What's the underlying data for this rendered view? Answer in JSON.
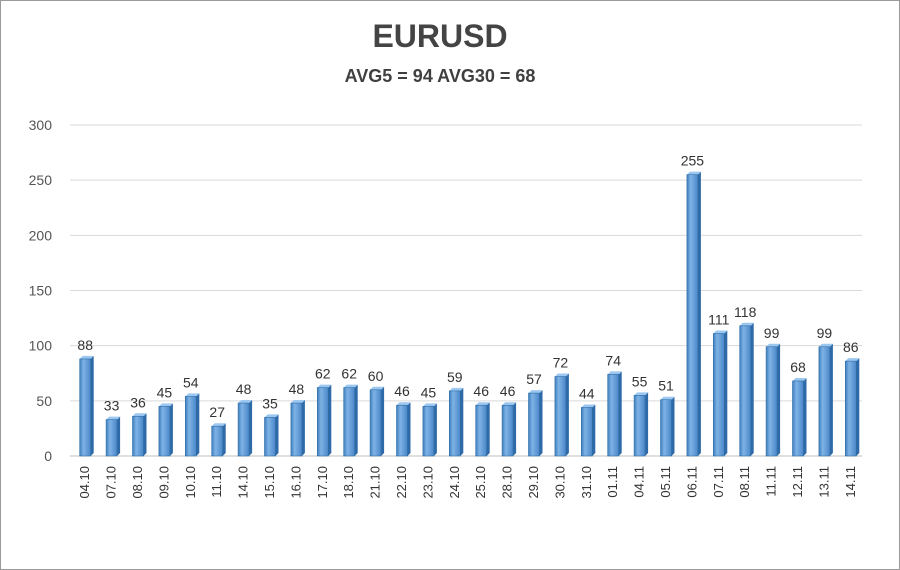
{
  "chart_data": {
    "type": "bar",
    "title": "EURUSD",
    "subtitle": "AVG5 = 94 AVG30 = 68",
    "categories": [
      "04.10",
      "07.10",
      "08.10",
      "09.10",
      "10.10",
      "11.10",
      "14.10",
      "15.10",
      "16.10",
      "17.10",
      "18.10",
      "21.10",
      "22.10",
      "23.10",
      "24.10",
      "25.10",
      "28.10",
      "29.10",
      "30.10",
      "31.10",
      "01.11",
      "04.11",
      "05.11",
      "06.11",
      "07.11",
      "08.11",
      "11.11",
      "12.11",
      "13.11",
      "14.11"
    ],
    "values": [
      88,
      33,
      36,
      45,
      54,
      27,
      48,
      35,
      48,
      62,
      62,
      60,
      46,
      45,
      59,
      46,
      46,
      57,
      72,
      44,
      74,
      55,
      51,
      255,
      111,
      118,
      99,
      68,
      99,
      86
    ],
    "yticks": [
      0,
      50,
      100,
      150,
      200,
      250,
      300
    ],
    "ylim": [
      0,
      300
    ],
    "grid": true,
    "bar_color": "#5b9bd5",
    "bar_edge_color": "#2e6da4"
  }
}
